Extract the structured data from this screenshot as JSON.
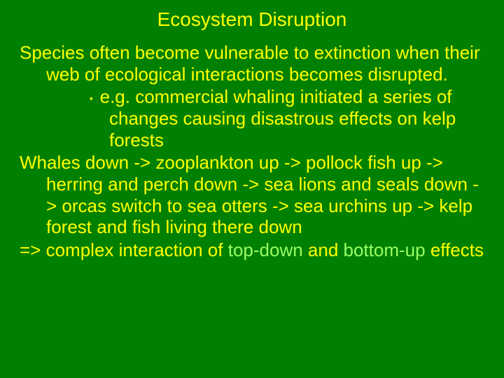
{
  "slide": {
    "title": "Ecosystem Disruption",
    "para1": "Species often become vulnerable to extinction when their web of ecological interactions becomes disrupted.",
    "bullet_mark": "▪",
    "bullet1": "e.g. commercial whaling initiated a series of changes causing disastrous effects on kelp forests",
    "para2": "Whales down -> zooplankton up -> pollock fish up -> herring and perch down -> sea lions and seals down -> orcas switch to sea otters -> sea urchins up -> kelp forest and fish living there down",
    "para3_a": "=> complex interaction of ",
    "para3_hl1": "top-down",
    "para3_b": " and ",
    "para3_hl2": "bottom-up",
    "para3_c": " effects"
  },
  "style": {
    "background_color": "#008000",
    "text_color": "#ffff00",
    "highlight_color": "#99ff66",
    "title_fontsize": 28,
    "body_fontsize": 26,
    "font_family": "Arial"
  }
}
